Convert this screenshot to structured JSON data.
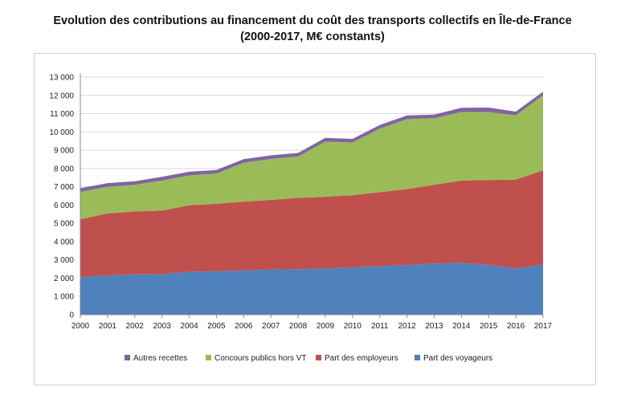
{
  "title_line1": "Evolution des contributions au financement du coût des transports collectifs en Île-de-France",
  "title_line2": "(2000-2017, M€ constants)",
  "chart_data": {
    "type": "area",
    "stacked": true,
    "title": "Evolution des contributions au financement du coût des transports collectifs en Île-de-France (2000-2017, M€ constants)",
    "x": [
      "2000",
      "2001",
      "2002",
      "2003",
      "2004",
      "2005",
      "2006",
      "2007",
      "2008",
      "2009",
      "2010",
      "2011",
      "2012",
      "2013",
      "2014",
      "2015",
      "2016",
      "2017"
    ],
    "ylim": [
      0,
      13000
    ],
    "yticks": [
      "0",
      "1 000",
      "2 000",
      "3 000",
      "4 000",
      "5 000",
      "6 000",
      "7 000",
      "8 000",
      "9 000",
      "10 000",
      "11 000",
      "12 000",
      "13 000"
    ],
    "ytick_values": [
      0,
      1000,
      2000,
      3000,
      4000,
      5000,
      6000,
      7000,
      8000,
      9000,
      10000,
      11000,
      12000,
      13000
    ],
    "grid": true,
    "legend_position": "bottom",
    "series": [
      {
        "name": "Part des voyageurs",
        "color": "#4f81bd",
        "values": [
          2050,
          2150,
          2200,
          2220,
          2350,
          2380,
          2420,
          2470,
          2490,
          2530,
          2580,
          2660,
          2720,
          2800,
          2820,
          2730,
          2530,
          2730
        ]
      },
      {
        "name": "Part des employeurs",
        "color": "#c0504d",
        "values": [
          3170,
          3390,
          3450,
          3470,
          3630,
          3690,
          3760,
          3810,
          3900,
          3920,
          3960,
          4040,
          4150,
          4310,
          4520,
          4640,
          4860,
          5170
        ]
      },
      {
        "name": "Concours publics hors VT",
        "color": "#9bbb59",
        "values": [
          1500,
          1460,
          1450,
          1650,
          1640,
          1650,
          2130,
          2240,
          2260,
          3020,
          2880,
          3480,
          3830,
          3640,
          3750,
          3720,
          3520,
          4100
        ]
      },
      {
        "name": "Autres recettes",
        "color": "#8064a2",
        "values": [
          200,
          200,
          200,
          200,
          200,
          200,
          200,
          200,
          200,
          200,
          200,
          200,
          200,
          200,
          230,
          240,
          200,
          200
        ]
      }
    ],
    "legend_order": [
      "Autres recettes",
      "Concours publics hors VT",
      "Part des employeurs",
      "Part des voyageurs"
    ]
  }
}
